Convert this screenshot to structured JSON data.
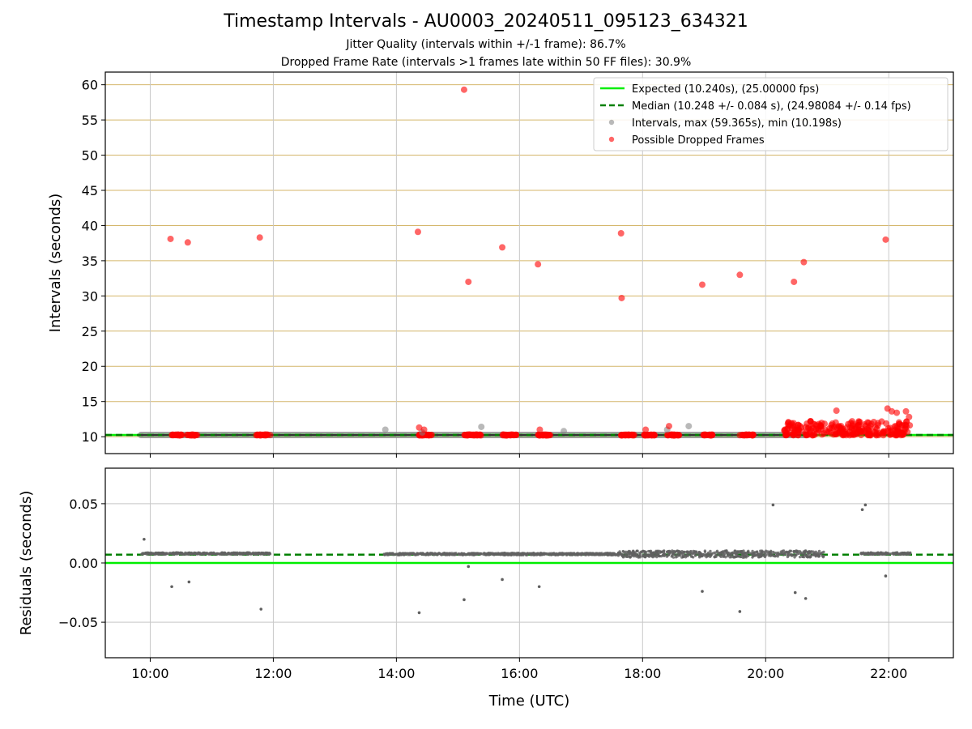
{
  "title": "Timestamp Intervals - AU0003_20240511_095123_634321",
  "subtitle_1": "Jitter Quality (intervals within +/-1 frame): 86.7%",
  "subtitle_2": "Dropped Frame Rate (intervals >1 frames late within 50 FF files): 30.9%",
  "colors": {
    "expected": "#00ee00",
    "median": "#008000",
    "intervals": "#808080",
    "dropped": "#ff0000",
    "grid_top": "#d4b66a",
    "grid": "#c8c8c8",
    "residuals": "#606060"
  },
  "chart_data": [
    {
      "type": "scatter",
      "panel": "intervals",
      "xlabel": "",
      "ylabel": "Intervals (seconds)",
      "x_unit": "hours UTC",
      "xlim": [
        9.27,
        23.05
      ],
      "ylim": [
        7.6,
        61.8
      ],
      "yticks": [
        10,
        15,
        20,
        25,
        30,
        35,
        40,
        45,
        50,
        55,
        60
      ],
      "grid": true,
      "legend_position": "top-right",
      "legend": [
        "Expected (10.240s), (25.00000 fps)",
        "Median (10.248 +/- 0.084 s), (24.98084 +/- 0.14 fps)",
        "Intervals, max (59.365s), min (10.198s)",
        "Possible Dropped Frames"
      ],
      "expected_line": 10.24,
      "median_line": 10.248,
      "interval_band": {
        "x_start": 9.85,
        "x_end": 20.65,
        "y": 10.24
      },
      "intervals": [
        {
          "x": 13.82,
          "y": 11.0
        },
        {
          "x": 15.38,
          "y": 11.4
        },
        {
          "x": 16.72,
          "y": 10.8
        },
        {
          "x": 18.75,
          "y": 11.5
        },
        {
          "x": 14.42,
          "y": 10.6
        },
        {
          "x": 18.4,
          "y": 11.0
        }
      ],
      "dropped_frames": [
        {
          "x": 10.33,
          "y": 38.1
        },
        {
          "x": 10.61,
          "y": 37.6
        },
        {
          "x": 11.78,
          "y": 38.3
        },
        {
          "x": 14.35,
          "y": 39.1
        },
        {
          "x": 15.1,
          "y": 59.3
        },
        {
          "x": 15.17,
          "y": 32.0
        },
        {
          "x": 15.72,
          "y": 36.9
        },
        {
          "x": 16.3,
          "y": 34.5
        },
        {
          "x": 17.65,
          "y": 38.9
        },
        {
          "x": 17.66,
          "y": 29.7
        },
        {
          "x": 18.97,
          "y": 31.6
        },
        {
          "x": 19.58,
          "y": 33.0
        },
        {
          "x": 20.46,
          "y": 32.0
        },
        {
          "x": 20.62,
          "y": 34.8
        },
        {
          "x": 21.95,
          "y": 38.0
        },
        {
          "x": 14.37,
          "y": 11.3
        },
        {
          "x": 14.45,
          "y": 11.0
        },
        {
          "x": 16.33,
          "y": 11.0
        },
        {
          "x": 18.05,
          "y": 11.0
        },
        {
          "x": 18.43,
          "y": 11.5
        },
        {
          "x": 21.15,
          "y": 13.7
        },
        {
          "x": 21.98,
          "y": 14.0
        },
        {
          "x": 22.05,
          "y": 13.6
        },
        {
          "x": 22.13,
          "y": 13.4
        },
        {
          "x": 22.28,
          "y": 13.6
        },
        {
          "x": 22.33,
          "y": 12.8
        }
      ],
      "dropped_frame_clusters": [
        {
          "x_start": 10.33,
          "x_end": 10.52,
          "y_min": 10.24,
          "y_max": 10.24
        },
        {
          "x_start": 10.6,
          "x_end": 10.78,
          "y_min": 10.24,
          "y_max": 10.24
        },
        {
          "x_start": 11.72,
          "x_end": 11.95,
          "y_min": 10.24,
          "y_max": 10.24
        },
        {
          "x_start": 14.35,
          "x_end": 14.58,
          "y_min": 10.24,
          "y_max": 10.24
        },
        {
          "x_start": 15.1,
          "x_end": 15.38,
          "y_min": 10.24,
          "y_max": 10.24
        },
        {
          "x_start": 15.72,
          "x_end": 15.95,
          "y_min": 10.24,
          "y_max": 10.24
        },
        {
          "x_start": 16.3,
          "x_end": 16.5,
          "y_min": 10.24,
          "y_max": 10.24
        },
        {
          "x_start": 17.65,
          "x_end": 17.88,
          "y_min": 10.24,
          "y_max": 10.24
        },
        {
          "x_start": 18.0,
          "x_end": 18.2,
          "y_min": 10.24,
          "y_max": 10.24
        },
        {
          "x_start": 18.4,
          "x_end": 18.6,
          "y_min": 10.24,
          "y_max": 10.24
        },
        {
          "x_start": 18.97,
          "x_end": 19.15,
          "y_min": 10.24,
          "y_max": 10.24
        },
        {
          "x_start": 19.58,
          "x_end": 19.8,
          "y_min": 10.24,
          "y_max": 10.24
        },
        {
          "x_start": 20.3,
          "x_end": 22.35,
          "y_min": 10.2,
          "y_max": 12.3
        }
      ]
    },
    {
      "type": "scatter",
      "panel": "residuals",
      "xlabel": "Time (UTC)",
      "ylabel": "Residuals (seconds)",
      "x_unit": "hours UTC",
      "xlim": [
        9.27,
        23.05
      ],
      "ylim": [
        -0.08,
        0.08
      ],
      "xticks": [
        10,
        12,
        14,
        16,
        18,
        20,
        22
      ],
      "xtick_labels": [
        "10:00",
        "12:00",
        "14:00",
        "16:00",
        "18:00",
        "20:00",
        "22:00"
      ],
      "yticks": [
        0.05,
        0.0,
        -0.05
      ],
      "ytick_labels": [
        "0.05",
        "0.00",
        "−0.05"
      ],
      "grid": true,
      "expected_line": 0.0,
      "median_line": 0.007,
      "residual_bands": [
        {
          "x_start": 9.85,
          "x_end": 11.95,
          "y": 0.008,
          "spread": 0.0007
        },
        {
          "x_start": 13.8,
          "x_end": 17.6,
          "y": 0.0075,
          "spread": 0.0008
        },
        {
          "x_start": 17.6,
          "x_end": 20.95,
          "y": 0.0075,
          "spread": 0.0028
        },
        {
          "x_start": 21.55,
          "x_end": 22.35,
          "y": 0.008,
          "spread": 0.0008
        }
      ],
      "outliers": [
        {
          "x": 9.9,
          "y": 0.02
        },
        {
          "x": 10.35,
          "y": -0.02
        },
        {
          "x": 10.63,
          "y": -0.016
        },
        {
          "x": 11.8,
          "y": -0.039
        },
        {
          "x": 14.37,
          "y": -0.042
        },
        {
          "x": 15.1,
          "y": -0.031
        },
        {
          "x": 15.17,
          "y": -0.003
        },
        {
          "x": 15.72,
          "y": -0.014
        },
        {
          "x": 16.32,
          "y": -0.02
        },
        {
          "x": 18.97,
          "y": -0.024
        },
        {
          "x": 19.58,
          "y": -0.041
        },
        {
          "x": 20.12,
          "y": 0.049
        },
        {
          "x": 20.48,
          "y": -0.025
        },
        {
          "x": 20.65,
          "y": -0.03
        },
        {
          "x": 21.57,
          "y": 0.045
        },
        {
          "x": 21.62,
          "y": 0.049
        },
        {
          "x": 21.95,
          "y": -0.011
        }
      ]
    }
  ]
}
